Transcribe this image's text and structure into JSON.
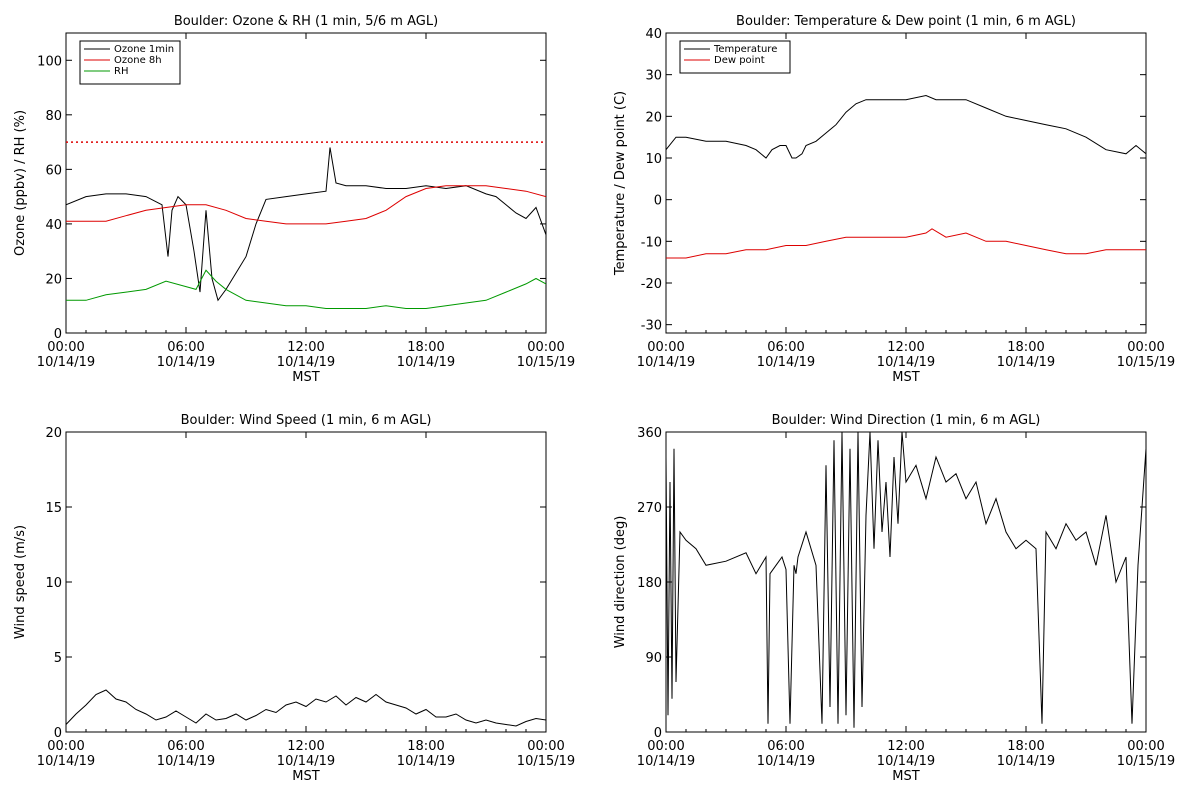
{
  "chart_data": [
    {
      "type": "line",
      "title": "Boulder: Ozone & RH (1 min, 5/6 m AGL)",
      "xlabel": "MST",
      "ylabel": "Ozone (ppbv) / RH (%)",
      "ylim": [
        0,
        110
      ],
      "yticks": [
        0,
        20,
        40,
        60,
        80,
        100
      ],
      "xticks": [
        {
          "time": "00:00",
          "date": "10/14/19"
        },
        {
          "time": "06:00",
          "date": "10/14/19"
        },
        {
          "time": "12:00",
          "date": "10/14/19"
        },
        {
          "time": "18:00",
          "date": "10/14/19"
        },
        {
          "time": "00:00",
          "date": "10/15/19"
        }
      ],
      "legend_position": "top-left",
      "reference_line": {
        "y": 70,
        "color": "#dd0000",
        "style": "dotted"
      },
      "series": [
        {
          "name": "Ozone 1min",
          "color": "#000000",
          "x": [
            0,
            1,
            2,
            3,
            4,
            4.8,
            5.1,
            5.3,
            5.6,
            6,
            6.4,
            6.7,
            7,
            7.3,
            7.6,
            8,
            8.5,
            9,
            9.5,
            10,
            11,
            12,
            13,
            13.2,
            13.5,
            14,
            15,
            16,
            17,
            18,
            19,
            20,
            21,
            21.5,
            22,
            22.5,
            23,
            23.5,
            24
          ],
          "y": [
            47,
            50,
            51,
            51,
            50,
            47,
            28,
            45,
            50,
            47,
            30,
            15,
            45,
            20,
            12,
            16,
            22,
            28,
            40,
            49,
            50,
            51,
            52,
            68,
            55,
            54,
            54,
            53,
            53,
            54,
            53,
            54,
            51,
            50,
            47,
            44,
            42,
            46,
            36
          ]
        },
        {
          "name": "Ozone 8h",
          "color": "#dd0000",
          "x": [
            0,
            2,
            3,
            4,
            5,
            6,
            7,
            8,
            9,
            10,
            11,
            12,
            13,
            14,
            15,
            16,
            17,
            18,
            19,
            20,
            21,
            22,
            23,
            24
          ],
          "y": [
            41,
            41,
            43,
            45,
            46,
            47,
            47,
            45,
            42,
            41,
            40,
            40,
            40,
            41,
            42,
            45,
            50,
            53,
            54,
            54,
            54,
            53,
            52,
            50
          ]
        },
        {
          "name": "RH",
          "color": "#009900",
          "x": [
            0,
            1,
            2,
            3,
            4,
            5,
            6,
            6.5,
            7,
            7.5,
            8,
            9,
            10,
            11,
            12,
            13,
            14,
            15,
            16,
            17,
            18,
            19,
            20,
            21,
            22,
            23,
            23.5,
            24
          ],
          "y": [
            12,
            12,
            14,
            15,
            16,
            19,
            17,
            16,
            23,
            19,
            16,
            12,
            11,
            10,
            10,
            9,
            9,
            9,
            10,
            9,
            9,
            10,
            11,
            12,
            15,
            18,
            20,
            18
          ]
        }
      ]
    },
    {
      "type": "line",
      "title": "Boulder: Temperature & Dew point (1 min, 6 m AGL)",
      "xlabel": "MST",
      "ylabel": "Temperature / Dew point (C)",
      "ylim": [
        -32,
        40
      ],
      "yticks": [
        -30,
        -20,
        -10,
        0,
        10,
        20,
        30,
        40
      ],
      "xticks": [
        {
          "time": "00:00",
          "date": "10/14/19"
        },
        {
          "time": "06:00",
          "date": "10/14/19"
        },
        {
          "time": "12:00",
          "date": "10/14/19"
        },
        {
          "time": "18:00",
          "date": "10/14/19"
        },
        {
          "time": "00:00",
          "date": "10/15/19"
        }
      ],
      "legend_position": "top-left",
      "series": [
        {
          "name": "Temperature",
          "color": "#000000",
          "x": [
            0,
            0.5,
            1,
            2,
            3,
            4,
            4.5,
            5,
            5.3,
            5.7,
            6,
            6.3,
            6.5,
            6.8,
            7,
            7.5,
            8,
            8.5,
            9,
            9.5,
            10,
            11,
            12,
            13,
            13.5,
            14,
            15,
            16,
            17,
            18,
            19,
            20,
            21,
            22,
            23,
            23.5,
            24
          ],
          "y": [
            12,
            15,
            15,
            14,
            14,
            13,
            12,
            10,
            12,
            13,
            13,
            10,
            10,
            11,
            13,
            14,
            16,
            18,
            21,
            23,
            24,
            24,
            24,
            25,
            24,
            24,
            24,
            22,
            20,
            19,
            18,
            17,
            15,
            12,
            11,
            13,
            11
          ]
        },
        {
          "name": "Dew point",
          "color": "#dd0000",
          "x": [
            0,
            1,
            2,
            3,
            4,
            5,
            6,
            7,
            8,
            9,
            10,
            11,
            12,
            13,
            13.3,
            14,
            15,
            16,
            17,
            18,
            19,
            20,
            21,
            22,
            23,
            24
          ],
          "y": [
            -14,
            -14,
            -13,
            -13,
            -12,
            -12,
            -11,
            -11,
            -10,
            -9,
            -9,
            -9,
            -9,
            -8,
            -7,
            -9,
            -8,
            -10,
            -10,
            -11,
            -12,
            -13,
            -13,
            -12,
            -12,
            -12
          ]
        }
      ]
    },
    {
      "type": "line",
      "title": "Boulder: Wind Speed (1 min, 6 m AGL)",
      "xlabel": "MST",
      "ylabel": "Wind speed (m/s)",
      "ylim": [
        0,
        20
      ],
      "yticks": [
        0,
        5,
        10,
        15,
        20
      ],
      "xticks": [
        {
          "time": "00:00",
          "date": "10/14/19"
        },
        {
          "time": "06:00",
          "date": "10/14/19"
        },
        {
          "time": "12:00",
          "date": "10/14/19"
        },
        {
          "time": "18:00",
          "date": "10/14/19"
        },
        {
          "time": "00:00",
          "date": "10/15/19"
        }
      ],
      "series": [
        {
          "color": "#000000",
          "x": [
            0,
            0.5,
            1,
            1.5,
            2,
            2.5,
            3,
            3.5,
            4,
            4.5,
            5,
            5.5,
            6,
            6.5,
            7,
            7.5,
            8,
            8.5,
            9,
            9.5,
            10,
            10.5,
            11,
            11.5,
            12,
            12.5,
            13,
            13.5,
            14,
            14.5,
            15,
            15.5,
            16,
            16.5,
            17,
            17.5,
            18,
            18.5,
            19,
            19.5,
            20,
            20.5,
            21,
            21.5,
            22,
            22.5,
            23,
            23.5,
            24
          ],
          "y": [
            0.5,
            1.2,
            1.8,
            2.5,
            2.8,
            2.2,
            2.0,
            1.5,
            1.2,
            0.8,
            1.0,
            1.4,
            1.0,
            0.6,
            1.2,
            0.8,
            0.9,
            1.2,
            0.8,
            1.1,
            1.5,
            1.3,
            1.8,
            2.0,
            1.7,
            2.2,
            2.0,
            2.4,
            1.8,
            2.3,
            2.0,
            2.5,
            2.0,
            1.8,
            1.6,
            1.2,
            1.5,
            1.0,
            1.0,
            1.2,
            0.8,
            0.6,
            0.8,
            0.6,
            0.5,
            0.4,
            0.7,
            0.9,
            0.8
          ]
        }
      ]
    },
    {
      "type": "line",
      "title": "Boulder: Wind Direction (1 min, 6 m AGL)",
      "xlabel": "MST",
      "ylabel": "Wind direction (deg)",
      "ylim": [
        0,
        360
      ],
      "yticks": [
        0,
        90,
        180,
        270,
        360
      ],
      "xticks": [
        {
          "time": "00:00",
          "date": "10/14/19"
        },
        {
          "time": "06:00",
          "date": "10/14/19"
        },
        {
          "time": "12:00",
          "date": "10/14/19"
        },
        {
          "time": "18:00",
          "date": "10/14/19"
        },
        {
          "time": "00:00",
          "date": "10/15/19"
        }
      ],
      "series": [
        {
          "color": "#000000",
          "x": [
            0,
            0.1,
            0.2,
            0.3,
            0.4,
            0.5,
            0.7,
            1,
            1.5,
            2,
            3,
            4,
            4.5,
            5,
            5.1,
            5.2,
            5.5,
            5.8,
            6,
            6.2,
            6.4,
            6.5,
            6.6,
            7,
            7.5,
            7.8,
            8,
            8.2,
            8.4,
            8.6,
            8.8,
            9,
            9.2,
            9.4,
            9.6,
            9.8,
            10,
            10.2,
            10.4,
            10.6,
            10.8,
            11,
            11.2,
            11.4,
            11.6,
            11.8,
            12,
            12.5,
            13,
            13.5,
            14,
            14.5,
            15,
            15.5,
            16,
            16.5,
            17,
            17.5,
            18,
            18.5,
            18.8,
            19,
            19.5,
            20,
            20.5,
            21,
            21.5,
            22,
            22.5,
            23,
            23.3,
            23.6,
            24
          ],
          "y": [
            330,
            20,
            300,
            40,
            340,
            60,
            240,
            230,
            220,
            200,
            205,
            215,
            190,
            210,
            10,
            190,
            200,
            210,
            195,
            10,
            200,
            190,
            210,
            240,
            200,
            10,
            320,
            30,
            350,
            10,
            360,
            20,
            340,
            5,
            360,
            30,
            260,
            360,
            220,
            350,
            240,
            300,
            210,
            330,
            250,
            360,
            300,
            320,
            280,
            330,
            300,
            310,
            280,
            300,
            250,
            280,
            240,
            220,
            230,
            220,
            10,
            240,
            220,
            250,
            230,
            240,
            200,
            260,
            180,
            210,
            10,
            200,
            340
          ]
        }
      ]
    }
  ]
}
